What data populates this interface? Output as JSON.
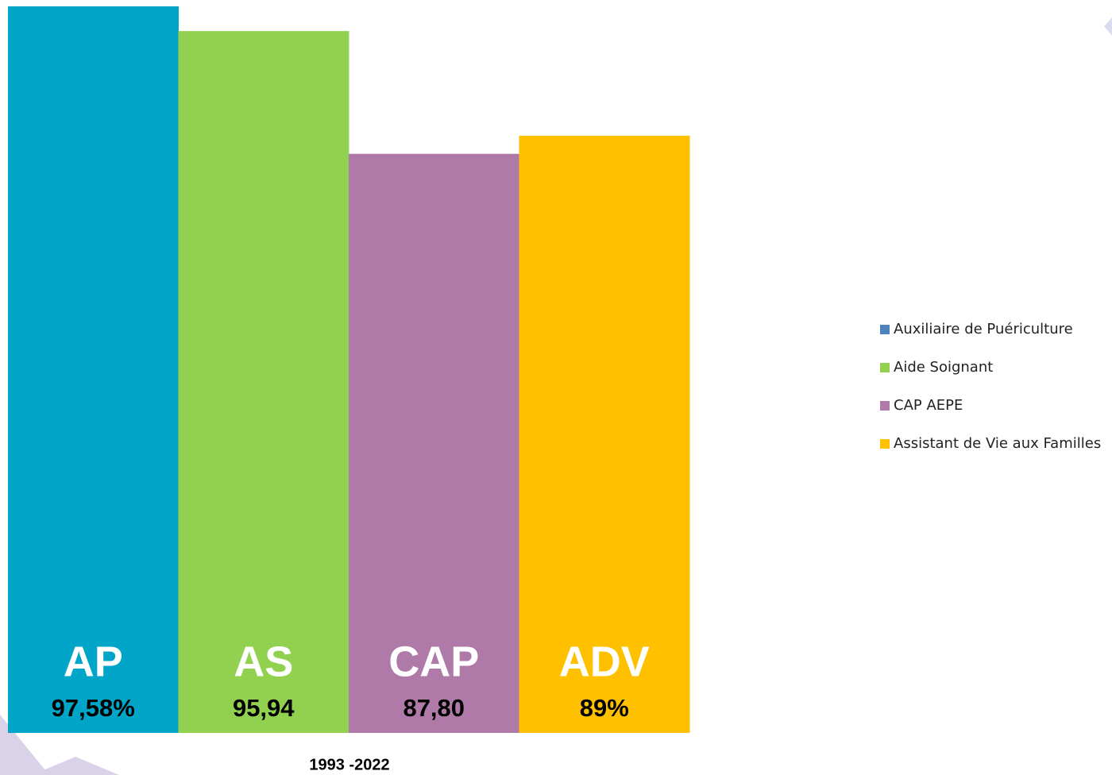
{
  "chart_data": {
    "type": "bar",
    "categories": [
      "AP",
      "AS",
      "CAP",
      "ADV"
    ],
    "values": [
      97.58,
      95.94,
      87.8,
      89
    ],
    "value_labels": [
      "97,58%",
      "95,94",
      "87,80",
      "89%"
    ],
    "colors": [
      "#00a5c8",
      "#92d050",
      "#b07aa8",
      "#ffc000"
    ],
    "ylim": [
      49.4,
      98.0
    ],
    "x_label": "1993 -2022",
    "legend": [
      {
        "name": "Auxiliaire de Puériculture",
        "color": "#4f81bd"
      },
      {
        "name": "Aide Soignant",
        "color": "#92d050"
      },
      {
        "name": "CAP AEPE",
        "color": "#b07aa8"
      },
      {
        "name": "Assistant de Vie aux Familles",
        "color": "#ffc000"
      }
    ],
    "legend_position": "right"
  }
}
